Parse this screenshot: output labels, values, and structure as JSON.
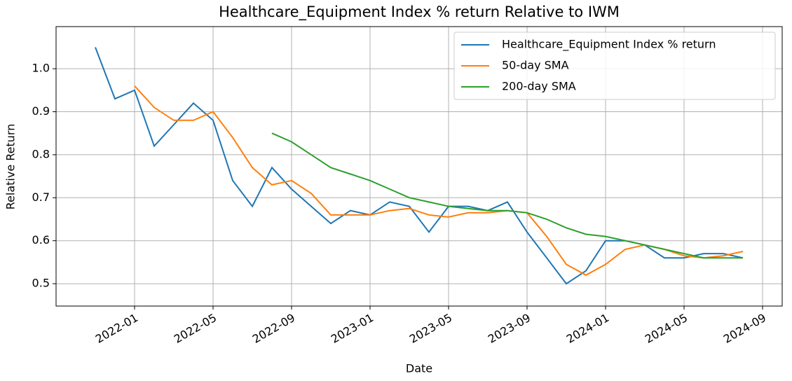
{
  "chart_data": {
    "type": "line",
    "title": "Healthcare_Equipment Index % return Relative to IWM",
    "xlabel": "Date",
    "ylabel": "Relative Return",
    "x": [
      "2021-11",
      "2021-12",
      "2022-01",
      "2022-02",
      "2022-03",
      "2022-04",
      "2022-05",
      "2022-06",
      "2022-07",
      "2022-08",
      "2022-09",
      "2022-10",
      "2022-11",
      "2022-12",
      "2023-01",
      "2023-02",
      "2023-03",
      "2023-04",
      "2023-05",
      "2023-06",
      "2023-07",
      "2023-08",
      "2023-09",
      "2023-10",
      "2023-11",
      "2023-12",
      "2024-01",
      "2024-02",
      "2024-03",
      "2024-04",
      "2024-05",
      "2024-06",
      "2024-07",
      "2024-08"
    ],
    "series": [
      {
        "name": "Healthcare_Equipment Index % return",
        "color": "#1f77b4",
        "values": [
          1.05,
          0.93,
          0.95,
          0.82,
          0.87,
          0.92,
          0.88,
          0.74,
          0.68,
          0.77,
          0.72,
          0.68,
          0.64,
          0.67,
          0.66,
          0.69,
          0.68,
          0.62,
          0.68,
          0.68,
          0.67,
          0.69,
          0.62,
          0.56,
          0.5,
          0.53,
          0.6,
          0.6,
          0.59,
          0.56,
          0.56,
          0.57,
          0.57,
          0.56
        ]
      },
      {
        "name": "50-day SMA",
        "color": "#ff7f0e",
        "values": [
          null,
          null,
          0.96,
          0.91,
          0.88,
          0.88,
          0.9,
          0.84,
          0.77,
          0.73,
          0.74,
          0.71,
          0.66,
          0.66,
          0.66,
          0.67,
          0.675,
          0.66,
          0.655,
          0.665,
          0.665,
          0.67,
          0.665,
          0.61,
          0.545,
          0.52,
          0.545,
          0.58,
          0.59,
          0.58,
          0.565,
          0.56,
          0.565,
          0.575
        ]
      },
      {
        "name": "200-day SMA",
        "color": "#2ca02c",
        "values": [
          null,
          null,
          null,
          null,
          null,
          null,
          null,
          null,
          null,
          0.85,
          0.83,
          0.8,
          0.77,
          0.755,
          0.74,
          0.72,
          0.7,
          0.69,
          0.68,
          0.675,
          0.67,
          0.67,
          0.665,
          0.65,
          0.63,
          0.615,
          0.61,
          0.6,
          0.59,
          0.58,
          0.57,
          0.56,
          0.56,
          0.56
        ]
      }
    ],
    "xlim": [
      "2021-09",
      "2024-10"
    ],
    "xticks": [
      "2022-01",
      "2022-05",
      "2022-09",
      "2023-01",
      "2023-05",
      "2023-09",
      "2024-01",
      "2024-05",
      "2024-09"
    ],
    "ylim": [
      0.448,
      1.098
    ],
    "yticks": [
      0.5,
      0.6,
      0.7,
      0.8,
      0.9,
      {
        "value": 1,
        "label": "1.0"
      }
    ],
    "grid": true,
    "legend": "upper right"
  }
}
